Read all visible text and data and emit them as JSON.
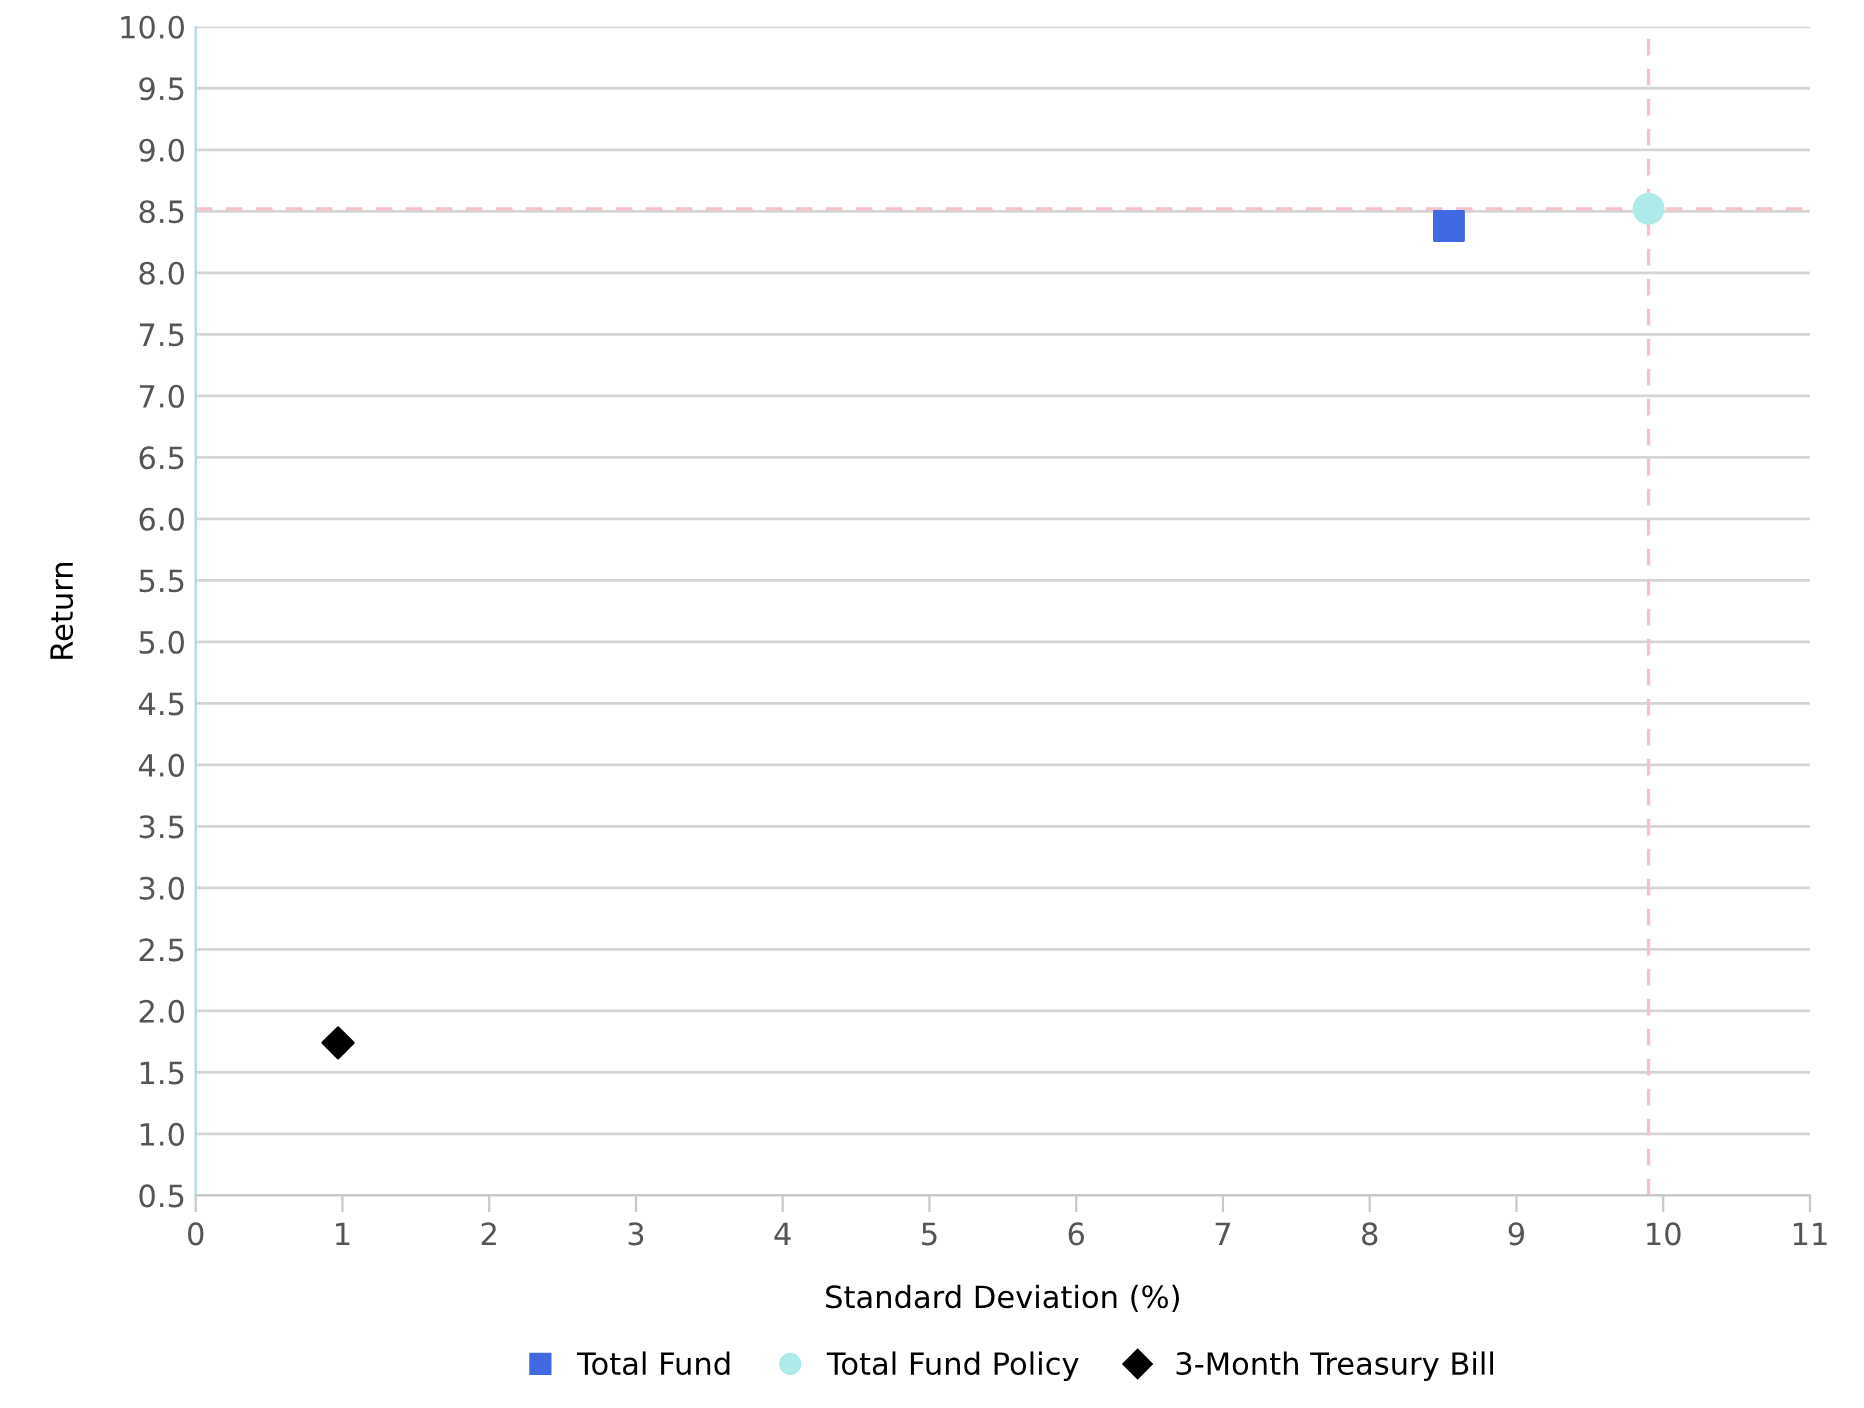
{
  "chart_data": {
    "type": "scatter",
    "xlabel": "Standard Deviation (%)",
    "ylabel": "Return",
    "xlim": [
      0,
      11
    ],
    "xticks": [
      0,
      1,
      2,
      3,
      4,
      5,
      6,
      7,
      8,
      9,
      10,
      11
    ],
    "ylim": [
      0.5,
      10.0
    ],
    "yticks": [
      {
        "value": 0.5,
        "label": "0.5"
      },
      {
        "value": 1.0,
        "label": "1.0"
      },
      {
        "value": 1.5,
        "label": "1.5"
      },
      {
        "value": 2.0,
        "label": "2.0"
      },
      {
        "value": 2.5,
        "label": "2.5"
      },
      {
        "value": 3.0,
        "label": "3.0"
      },
      {
        "value": 3.5,
        "label": "3.5"
      },
      {
        "value": 4.0,
        "label": "4.0"
      },
      {
        "value": 4.5,
        "label": "4.5"
      },
      {
        "value": 5.0,
        "label": "5.0"
      },
      {
        "value": 5.5,
        "label": "5.5"
      },
      {
        "value": 6.0,
        "label": "6.0"
      },
      {
        "value": 6.5,
        "label": "6.5"
      },
      {
        "value": 7.0,
        "label": "7.0"
      },
      {
        "value": 7.5,
        "label": "7.5"
      },
      {
        "value": 8.0,
        "label": "8.0"
      },
      {
        "value": 8.5,
        "label": "8.5"
      },
      {
        "value": 9.0,
        "label": "9.0"
      },
      {
        "value": 9.5,
        "label": "9.5"
      },
      {
        "value": 10.0,
        "label": "10.0"
      }
    ],
    "grid": "y",
    "legend": "bottom",
    "series": [
      {
        "name": "Total Fund",
        "color": "#4169e1",
        "marker": "square",
        "x": [
          8.54
        ],
        "values": [
          8.38
        ]
      },
      {
        "name": "Total Fund Policy",
        "color": "#aeeaea",
        "marker": "circle",
        "x": [
          9.9
        ],
        "values": [
          8.52
        ]
      },
      {
        "name": "3-Month Treasury Bill",
        "color": "#000000",
        "marker": "diamond",
        "x": [
          0.97
        ],
        "values": [
          1.74
        ]
      }
    ],
    "ref_lines": [
      {
        "axis": "y",
        "value": 8.52,
        "color": "#f4c2c8",
        "line_style": "dashed"
      },
      {
        "axis": "x",
        "value": 9.9,
        "color": "#f4c2c8",
        "line_style": "dashed"
      }
    ]
  }
}
